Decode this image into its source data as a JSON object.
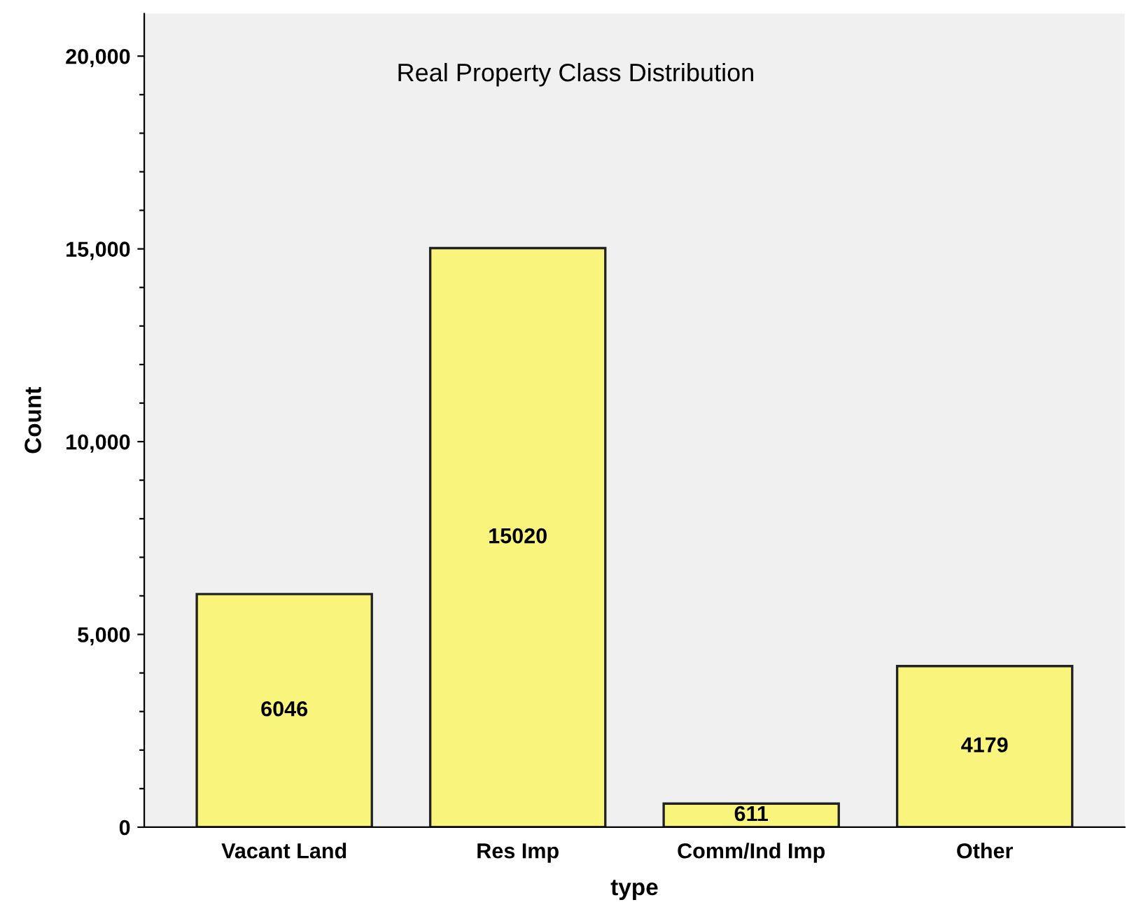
{
  "chart_data": {
    "type": "bar",
    "title": "Real Property Class Distribution",
    "xlabel": "type",
    "ylabel": "Count",
    "categories": [
      "Vacant Land",
      "Res Imp",
      "Comm/Ind Imp",
      "Other"
    ],
    "values": [
      6046,
      15020,
      611,
      4179
    ],
    "color": "#f9f57c",
    "data_labels": true,
    "grid": false,
    "legend": false,
    "ylim": [
      0,
      21100
    ],
    "yticks": [
      {
        "value": 0,
        "label": "0"
      },
      {
        "value": 1000,
        "label": null
      },
      {
        "value": 2000,
        "label": null
      },
      {
        "value": 3000,
        "label": null
      },
      {
        "value": 4000,
        "label": null
      },
      {
        "value": 5000,
        "label": "5,000"
      },
      {
        "value": 6000,
        "label": null
      },
      {
        "value": 7000,
        "label": null
      },
      {
        "value": 8000,
        "label": null
      },
      {
        "value": 9000,
        "label": null
      },
      {
        "value": 10000,
        "label": "10,000"
      },
      {
        "value": 11000,
        "label": null
      },
      {
        "value": 12000,
        "label": null
      },
      {
        "value": 13000,
        "label": null
      },
      {
        "value": 14000,
        "label": null
      },
      {
        "value": 15000,
        "label": "15,000"
      },
      {
        "value": 16000,
        "label": null
      },
      {
        "value": 17000,
        "label": null
      },
      {
        "value": 18000,
        "label": null
      },
      {
        "value": 19000,
        "label": null
      },
      {
        "value": 20000,
        "label": "20,000"
      }
    ]
  }
}
